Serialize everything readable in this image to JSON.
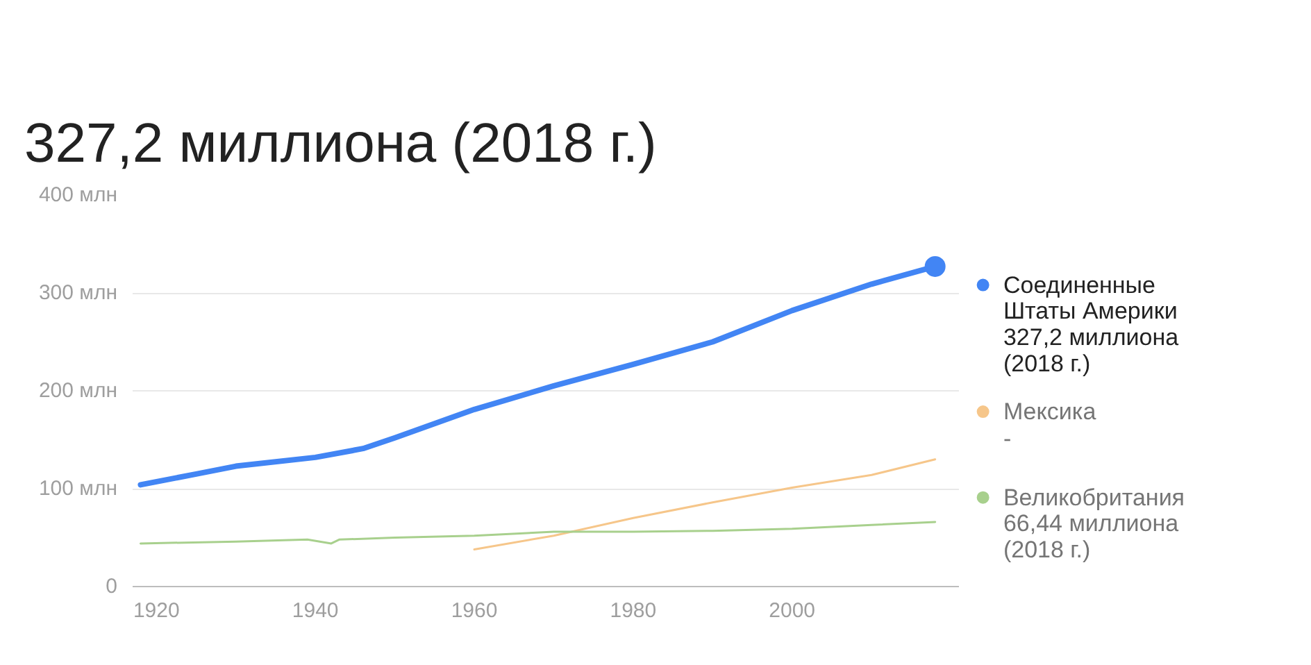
{
  "chart_data": {
    "type": "line",
    "title": "327,2 миллиона (2018 г.)",
    "xlim": [
      1917,
      2021
    ],
    "xticks": [
      1920,
      1940,
      1960,
      1980,
      2000
    ],
    "ylim": [
      0,
      400
    ],
    "yticks": [
      0,
      {
        "value": 100,
        "label": "100 млн"
      },
      {
        "value": 200,
        "label": "200 млн"
      },
      {
        "value": 300,
        "label": "300 млн"
      },
      {
        "value": 400,
        "label": "400 млн"
      }
    ],
    "grid": "y",
    "legend": "right",
    "series": [
      {
        "name": "Соединенные Штаты Америки",
        "color": "#4285f4",
        "x": [
          1918,
          1925,
          1930,
          1940,
          1946,
          1950,
          1960,
          1970,
          1980,
          1990,
          2000,
          2010,
          2018
        ],
        "values": [
          104,
          115,
          123,
          132,
          141,
          152,
          181,
          205,
          227,
          250,
          282,
          309,
          327
        ]
      },
      {
        "name": "Мексика",
        "color": "#f6c68a",
        "x": [
          1960,
          1970,
          1980,
          1990,
          2000,
          2010,
          2018
        ],
        "values": [
          38,
          52,
          70,
          86,
          101,
          114,
          130
        ]
      },
      {
        "name": "Великобритания",
        "color": "#a8d08d",
        "x": [
          1918,
          1930,
          1939,
          1942,
          1943,
          1950,
          1960,
          1970,
          1980,
          1990,
          2000,
          2010,
          2018
        ],
        "values": [
          44,
          46,
          48,
          44,
          48,
          50,
          52,
          56,
          56,
          57,
          59,
          63,
          66
        ]
      }
    ],
    "annotations": [
      "327,2 миллиона (2018 г.)",
      "-",
      "66,44 миллиона (2018 г.)"
    ]
  }
}
